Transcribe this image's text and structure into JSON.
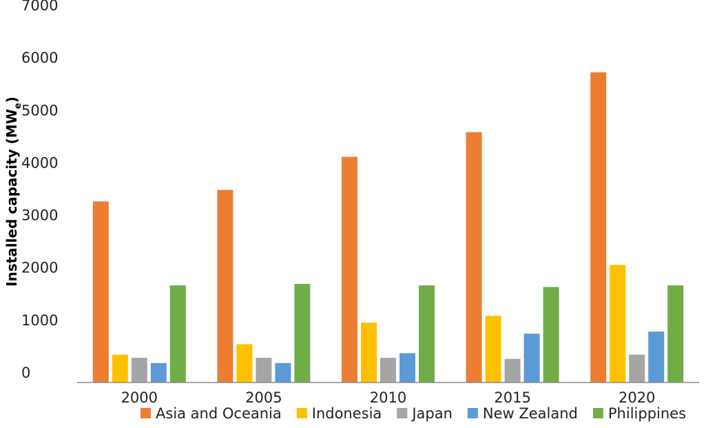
{
  "chart_data": {
    "type": "bar",
    "ylabel": "Installed capacity (MW",
    "ylabel_subscript": "e",
    "ylabel_suffix": ")",
    "categories": [
      "2000",
      "2005",
      "2010",
      "2015",
      "2020"
    ],
    "ylim": [
      0,
      7000
    ],
    "yticks": [
      0,
      1000,
      2000,
      3000,
      4000,
      5000,
      6000,
      7000
    ],
    "ytick_labels": [
      "0",
      "1000",
      "2000",
      "3000",
      "4000",
      "5000",
      "6000",
      "7000"
    ],
    "grid": false,
    "legend_position": "bottom",
    "series": [
      {
        "name": "Asia and Oceania",
        "color": "#ED7D31",
        "values": [
          3450,
          3670,
          4300,
          4770,
          5910
        ]
      },
      {
        "name": "Indonesia",
        "color": "#FFC000",
        "values": [
          530,
          730,
          1140,
          1270,
          2240
        ]
      },
      {
        "name": "Japan",
        "color": "#A5A5A5",
        "values": [
          470,
          470,
          470,
          450,
          530
        ]
      },
      {
        "name": "New Zealand",
        "color": "#5B9BD5",
        "values": [
          370,
          370,
          560,
          930,
          970
        ]
      },
      {
        "name": "Philippines",
        "color": "#70AD47",
        "values": [
          1850,
          1880,
          1850,
          1820,
          1850
        ]
      }
    ]
  }
}
